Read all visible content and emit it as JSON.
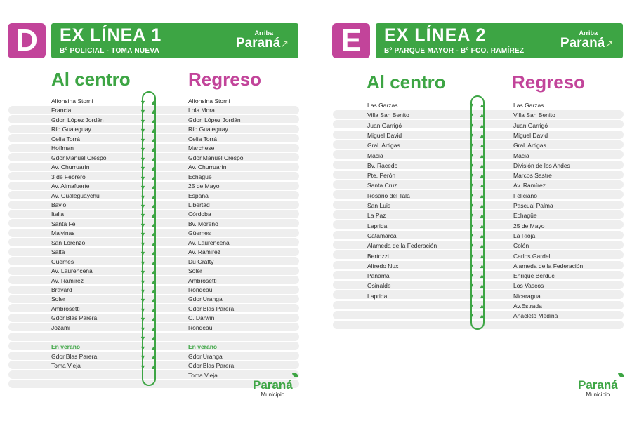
{
  "colors": {
    "accent": "#3da544",
    "badge": "#c2449a"
  },
  "panels": [
    {
      "letter": "D",
      "title": "EX LÍNEA 1",
      "subtitle": "Bº POLICIAL - TOMA NUEVA",
      "brand_top": "Arriba",
      "brand_main": "Paraná",
      "col_left": "Al centro",
      "col_right": "Regreso",
      "al_centro": [
        "Alfonsina Storni",
        "Francia",
        "Gdor. López Jordán",
        "Río Gualeguay",
        "Celia Torrá",
        "Hoffman",
        "Gdor.Manuel Crespo",
        "Av. Churruarín",
        "3 de Febrero",
        "Av. Almafuerte",
        "Av. Gualeguaychú",
        "Bavio",
        "Italia",
        "Santa Fe",
        "Malvinas",
        "San Lorenzo",
        "Salta",
        "Güemes",
        "Av. Laurencena",
        "Av. Ramírez",
        "Bravard",
        "Soler",
        "Ambrosetti",
        "Gdor.Blas Parera",
        "Jozami"
      ],
      "regreso": [
        "Alfonsina Storni",
        "Lola Mora",
        "Gdor. López Jordán",
        "Río Gualeguay",
        "Celia Torrá",
        "Marchese",
        "Gdor.Manuel Crespo",
        "Av. Churruarín",
        "Echagüe",
        "25 de Mayo",
        "España",
        "Libertad",
        "Córdoba",
        "Bv. Moreno",
        "Güemes",
        "Av. Laurencena",
        "Av. Ramírez",
        "Du Gratty",
        "Soler",
        "Ambrosetti",
        "Rondeau",
        "Gdor.Uranga",
        "Gdor.Blas Parera",
        "C. Darwin",
        "Rondeau"
      ],
      "verano_label": "En verano",
      "verano_left": [
        "Gdor.Blas Parera",
        "Toma Vieja"
      ],
      "verano_right": [
        "Gdor.Uranga",
        "Gdor.Blas Parera",
        "Toma Vieja"
      ],
      "footer_main": "Paraná",
      "footer_sub": "Municipio"
    },
    {
      "letter": "E",
      "title": "EX LÍNEA 2",
      "subtitle": "Bº PARQUE MAYOR - Bº FCO. RAMÍREZ",
      "brand_top": "Arriba",
      "brand_main": "Paraná",
      "col_left": "Al centro",
      "col_right": "Regreso",
      "al_centro": [
        "Las Garzas",
        "Villa San Benito",
        "Juan Garrigó",
        "Miguel David",
        "Gral. Artigas",
        "Maciá",
        "Bv. Racedo",
        "Pte. Perón",
        "Santa Cruz",
        "Rosario del Tala",
        "San Luis",
        "La Paz",
        "Laprida",
        "Catamarca",
        "Alameda de la Federación",
        "Bertozzi",
        "Alfredo Nux",
        "Panamá",
        "Osinalde",
        "Laprida"
      ],
      "regreso": [
        "Las Garzas",
        "Villa San Benito",
        "Juan Garrigó",
        "Miguel David",
        "Gral. Artigas",
        "Maciá",
        "División de los Andes",
        "Marcos Sastre",
        "Av. Ramírez",
        "Feliciano",
        "Pascual Palma",
        "Echagüe",
        "25 de Mayo",
        "La Rioja",
        "Colón",
        "Carlos Gardel",
        "Alameda de la Federación",
        "Enrique Berduc",
        "Los Vascos",
        "Nicaragua",
        "Av.Estrada",
        "Anacleto Medina"
      ],
      "footer_main": "Paraná",
      "footer_sub": "Municipio"
    }
  ]
}
